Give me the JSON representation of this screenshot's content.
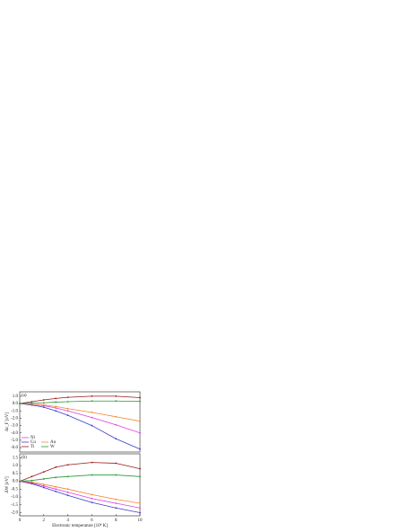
{
  "chart_data": [
    {
      "type": "line",
      "panel_label": "(a)",
      "ylabel": "Δε_F [eV]",
      "x": [
        0,
        1,
        2,
        3,
        4,
        6,
        8,
        10
      ],
      "xlim": [
        0,
        10
      ],
      "ylim": [
        -6.6,
        1.6
      ],
      "yticks": [
        {
          "value": 1,
          "label": "1.0"
        },
        {
          "value": 0,
          "label": "0.0"
        },
        {
          "value": -1,
          "label": "-1.0"
        },
        {
          "value": -2,
          "label": "-2.0"
        },
        {
          "value": -3,
          "label": "-3.0"
        },
        {
          "value": -4,
          "label": "-4.0"
        },
        {
          "value": -5,
          "label": "-5.0"
        },
        {
          "value": -6,
          "label": "-6.0"
        }
      ],
      "series": [
        {
          "name": "Ni",
          "color": "#e040e0",
          "values": [
            0,
            -0.1,
            -0.3,
            -0.6,
            -1.0,
            -1.9,
            -2.9,
            -4.0
          ]
        },
        {
          "name": "Cu",
          "color": "#3a3ad0",
          "values": [
            0,
            -0.2,
            -0.5,
            -1.0,
            -1.6,
            -3.0,
            -4.8,
            -6.2
          ]
        },
        {
          "name": "Au",
          "color": "#f08a30",
          "values": [
            0,
            -0.1,
            -0.2,
            -0.4,
            -0.7,
            -1.2,
            -1.8,
            -2.4
          ]
        },
        {
          "name": "Ti",
          "color": "#9a1a1a",
          "values": [
            0,
            0.25,
            0.5,
            0.7,
            0.85,
            1.0,
            1.0,
            0.8
          ]
        },
        {
          "name": "W",
          "color": "#2a9a3a",
          "values": [
            0,
            0.05,
            0.1,
            0.2,
            0.25,
            0.35,
            0.35,
            0.3
          ]
        }
      ]
    },
    {
      "type": "line",
      "panel_label": "(b)",
      "ylabel": "ΔW [eV]",
      "xlabel": "Electronic temperature [10⁴ K]",
      "x": [
        0,
        1,
        2,
        3,
        4,
        6,
        8,
        10
      ],
      "xlim": [
        0,
        10
      ],
      "xticks": [
        0,
        2,
        4,
        6,
        8,
        10
      ],
      "ylim": [
        -2.2,
        1.75
      ],
      "yticks": [
        {
          "value": 1.5,
          "label": "1.5"
        },
        {
          "value": 1,
          "label": "1.0"
        },
        {
          "value": 0.5,
          "label": "0.5"
        },
        {
          "value": 0,
          "label": "0.0"
        },
        {
          "value": -0.5,
          "label": "-0.5"
        },
        {
          "value": -1,
          "label": "-1.0"
        },
        {
          "value": -1.5,
          "label": "-1.5"
        },
        {
          "value": -2,
          "label": "-2.0"
        }
      ],
      "series": [
        {
          "color": "#e040e0",
          "values": [
            0,
            -0.1,
            -0.3,
            -0.5,
            -0.7,
            -1.1,
            -1.4,
            -1.7
          ]
        },
        {
          "color": "#3a3ad0",
          "values": [
            0,
            -0.15,
            -0.4,
            -0.65,
            -0.9,
            -1.35,
            -1.7,
            -2.0
          ]
        },
        {
          "color": "#f08a30",
          "values": [
            0,
            -0.05,
            -0.2,
            -0.35,
            -0.5,
            -0.85,
            -1.15,
            -1.4
          ]
        },
        {
          "color": "#9a1a1a",
          "values": [
            0,
            0.3,
            0.6,
            0.9,
            1.05,
            1.2,
            1.15,
            0.8
          ]
        },
        {
          "color": "#2a9a3a",
          "values": [
            0,
            0.05,
            0.15,
            0.25,
            0.3,
            0.4,
            0.4,
            0.3
          ]
        }
      ]
    }
  ]
}
